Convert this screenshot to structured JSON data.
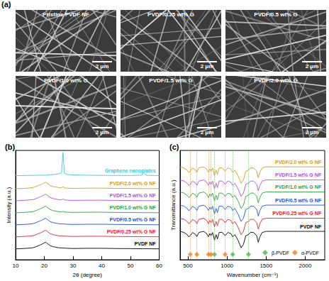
{
  "panel_a": {
    "label": "(a)",
    "images": [
      {
        "title": "Pristine PVDF NF",
        "scale_bar": "2 μm"
      },
      {
        "title": "PVDF/0.25 wt% G",
        "scale_bar": "2 μm"
      },
      {
        "title": "PVDF/0.5 wt% G",
        "scale_bar": "2 μm"
      },
      {
        "title": "PVDF/1.0 wt% G",
        "scale_bar": "2 μm"
      },
      {
        "title": "PVDF/1.5 wt% G",
        "scale_bar": "2 μm"
      },
      {
        "title": "PVDF/2.0 wt% G",
        "scale_bar": "2 μm"
      }
    ]
  },
  "chart_data": [
    {
      "type": "line",
      "title": "(b)",
      "x_label": "2θ (degree)",
      "y_label": "Intensity (a.u.)",
      "x": [
        10,
        12,
        14,
        16,
        17,
        18,
        18.5,
        19,
        20,
        20.5,
        21,
        22,
        23,
        25,
        26,
        26.5,
        27,
        28,
        30,
        35,
        40,
        45,
        50,
        54,
        54.6,
        55.5,
        60
      ],
      "series": [
        {
          "name": "PVDF NF",
          "color": "#000000",
          "values": [
            10,
            10.2,
            10.5,
            11,
            11.8,
            13,
            13.5,
            14,
            15.5,
            16,
            15,
            13,
            12,
            11,
            10.8,
            10.8,
            10.7,
            10.5,
            10.3,
            10.5,
            10.5,
            10.3,
            10.2,
            10.1,
            10.1,
            10.1,
            10
          ]
        },
        {
          "name": "PVDF/0.25 wt% G NF",
          "color": "#e8202a",
          "values": [
            21,
            21.2,
            21.5,
            22,
            22.8,
            24,
            24.5,
            25,
            26.5,
            27,
            26,
            24,
            23,
            22,
            21.8,
            21.8,
            21.7,
            21.5,
            21.3,
            21.5,
            21.5,
            21.3,
            21.2,
            21.1,
            21.1,
            21.1,
            21
          ]
        },
        {
          "name": "PVDF/0.5 wt% G NF",
          "color": "#1f4fd6",
          "values": [
            32,
            32.2,
            32.5,
            33,
            33.8,
            35,
            35.5,
            36,
            37.5,
            38,
            37,
            35,
            34,
            33,
            32.8,
            32.8,
            32.7,
            32.5,
            32.3,
            32.5,
            32.5,
            32.3,
            32.2,
            32.1,
            32.1,
            32.1,
            32
          ]
        },
        {
          "name": "PVDF/1.0 wt% G NF",
          "color": "#2aa23a",
          "values": [
            43,
            43.2,
            43.5,
            44,
            44.8,
            46,
            46.5,
            47,
            48.5,
            49,
            48,
            46,
            45,
            44,
            43.8,
            44.3,
            43.7,
            43.5,
            43.3,
            43.5,
            43.5,
            43.3,
            43.2,
            43.1,
            43.1,
            43.1,
            43
          ]
        },
        {
          "name": "PVDF/1.5 wt% G NF",
          "color": "#b050d8",
          "values": [
            54,
            54.2,
            54.5,
            55,
            55.8,
            57,
            57.5,
            58,
            59.5,
            60,
            59,
            57,
            56,
            55,
            54.8,
            55.8,
            54.7,
            54.5,
            54.3,
            54.5,
            54.5,
            54.3,
            54.2,
            54.1,
            54.1,
            54.1,
            54
          ]
        },
        {
          "name": "PVDF/2.0 wt% G NF",
          "color": "#c9a020",
          "values": [
            65,
            65.2,
            65.5,
            66,
            66.8,
            68,
            68.5,
            69,
            70.5,
            71,
            70,
            68,
            67,
            66,
            65.8,
            67,
            65.7,
            65.5,
            65.3,
            65.5,
            65.5,
            65.3,
            65.2,
            65.1,
            65.1,
            65.1,
            65
          ]
        },
        {
          "name": "Graphene nanoplates",
          "color": "#3cc8d8",
          "values": [
            77,
            77,
            77.1,
            77.2,
            77.2,
            77.3,
            77.3,
            77.3,
            77.4,
            77.4,
            77.5,
            77.8,
            78,
            78.5,
            79.5,
            98,
            79,
            78,
            77.6,
            77.3,
            77.2,
            77.1,
            77.1,
            77.3,
            80,
            77.2,
            77
          ]
        }
      ],
      "xlim": [
        10,
        60
      ],
      "xticks": [
        10,
        20,
        30,
        40,
        50,
        60
      ],
      "ylim": [
        0,
        100
      ],
      "tick_labels": "x",
      "grid": false
    },
    {
      "type": "line",
      "title": "(c)",
      "x_label": "Wavenumber (cm⁻¹)",
      "y_label": "Transmittance (a.u.)",
      "x": [
        400,
        450,
        490,
        510,
        530,
        560,
        600,
        614,
        640,
        700,
        740,
        763,
        780,
        796,
        815,
        840,
        860,
        877,
        900,
        940,
        976,
        1010,
        1050,
        1072,
        1100,
        1140,
        1180,
        1210,
        1240,
        1275,
        1300,
        1340,
        1380,
        1400,
        1420,
        1450,
        1500,
        1600,
        1700,
        1800,
        1900,
        2000,
        2100,
        2250
      ],
      "series": [
        {
          "name": "PVDF NF",
          "color": "#000000",
          "values": [
            26,
            25,
            23,
            21,
            22,
            25,
            23,
            21,
            25,
            26,
            24,
            21,
            24,
            22,
            25,
            18,
            23,
            19,
            25,
            25,
            22,
            25,
            24,
            21,
            23,
            18,
            11,
            14,
            22,
            23,
            25,
            25,
            22,
            16,
            21,
            25,
            26,
            26,
            26,
            26,
            26,
            26,
            26,
            26
          ]
        },
        {
          "name": "PVDF/0.25 wt% G NF",
          "color": "#e8202a",
          "values": [
            38,
            37,
            35,
            33,
            34,
            37,
            35,
            33,
            37,
            38,
            36,
            33,
            36,
            34,
            37,
            30,
            35,
            31,
            37,
            37,
            34,
            37,
            36,
            33,
            35,
            30,
            23,
            26,
            34,
            35,
            37,
            37,
            34,
            28,
            33,
            37,
            38,
            38,
            38,
            38,
            38,
            38,
            38,
            38
          ]
        },
        {
          "name": "PVDF/0.5 wt% G NF",
          "color": "#1f4fd6",
          "values": [
            50,
            49,
            47,
            45,
            46,
            49,
            47,
            45,
            49,
            50,
            48,
            45,
            48,
            46,
            49,
            42,
            47,
            43,
            49,
            49,
            46,
            49,
            48,
            45,
            47,
            42,
            35,
            38,
            46,
            47,
            49,
            49,
            46,
            40,
            45,
            49,
            50,
            50,
            50,
            50,
            50,
            50,
            50,
            50
          ]
        },
        {
          "name": "PVDF/1.0 wt% G NF",
          "color": "#2aa23a",
          "values": [
            62,
            61,
            59,
            57,
            58,
            61,
            59,
            57,
            61,
            62,
            60,
            57,
            60,
            58,
            61,
            54,
            59,
            55,
            61,
            61,
            58,
            61,
            60,
            57,
            59,
            54,
            47,
            50,
            58,
            59,
            61,
            61,
            58,
            52,
            57,
            61,
            62,
            62,
            62,
            62,
            62,
            62,
            62,
            62
          ]
        },
        {
          "name": "PVDF/1.5 wt% G NF",
          "color": "#b050d8",
          "values": [
            73,
            72,
            70,
            68,
            69,
            72,
            70,
            68,
            72,
            73,
            71,
            68,
            71,
            69,
            72,
            65,
            70,
            66,
            72,
            72,
            69,
            72,
            71,
            68,
            70,
            65,
            58,
            61,
            69,
            70,
            72,
            72,
            69,
            63,
            68,
            72,
            73,
            73,
            73,
            73,
            73,
            73,
            73,
            73
          ]
        },
        {
          "name": "PVDF/2.0 wt% G NF",
          "color": "#c9a020",
          "values": [
            85,
            84,
            82,
            80,
            81,
            84,
            82,
            80,
            84,
            85,
            83,
            80,
            83,
            81,
            84,
            77,
            82,
            78,
            84,
            84,
            81,
            84,
            83,
            80,
            82,
            77,
            70,
            73,
            81,
            82,
            84,
            84,
            81,
            75,
            80,
            84,
            85,
            85,
            85,
            85,
            85,
            85,
            85,
            85
          ]
        },
        {
          "name": "β-PVDF",
          "type": "scatter",
          "marker": "diamond",
          "line_style": "dotted",
          "color": "#50b848",
          "x": [
            840,
            1072,
            1275
          ],
          "values": [
            5,
            5,
            5
          ]
        },
        {
          "name": "α-PVDF",
          "type": "scatter",
          "marker": "diamond",
          "line_style": "dotted",
          "color": "#f08020",
          "x": [
            530,
            614,
            763,
            796,
            976
          ],
          "values": [
            5,
            5,
            5,
            5,
            5
          ]
        }
      ],
      "xlim": [
        400,
        2250
      ],
      "xticks": [
        500,
        1000,
        1500,
        2000
      ],
      "ylim": [
        0,
        100
      ],
      "tick_labels": "x",
      "grid": false,
      "legend": "lower right"
    }
  ]
}
